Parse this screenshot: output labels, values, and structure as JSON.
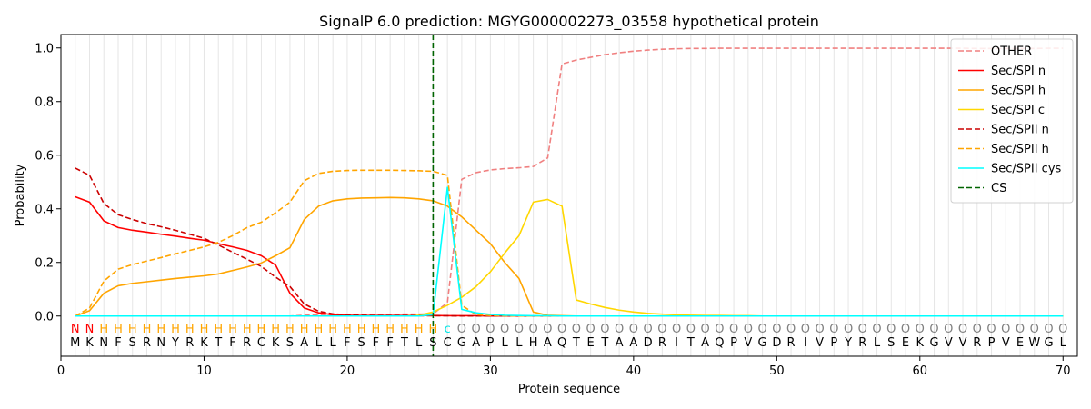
{
  "chart_data": {
    "type": "line",
    "title": "SignalP 6.0 prediction: MGYG000002273_03558 hypothetical protein",
    "xlabel": "Protein sequence",
    "ylabel": "Probability",
    "xlim": [
      0,
      71
    ],
    "ylim": [
      -0.15,
      1.05
    ],
    "xticks": [
      "0",
      "10",
      "20",
      "30",
      "40",
      "50",
      "60",
      "70"
    ],
    "yticks": [
      "0.0",
      "0.2",
      "0.4",
      "0.6",
      "0.8",
      "1.0"
    ],
    "grid": "vertical",
    "legend_position": "top-right",
    "sequence": [
      "M",
      "K",
      "N",
      "F",
      "S",
      "R",
      "N",
      "Y",
      "R",
      "K",
      "T",
      "F",
      "R",
      "C",
      "K",
      "S",
      "A",
      "L",
      "L",
      "F",
      "S",
      "F",
      "F",
      "T",
      "L",
      "S",
      "C",
      "G",
      "A",
      "P",
      "L",
      "L",
      "H",
      "A",
      "Q",
      "T",
      "E",
      "T",
      "A",
      "A",
      "D",
      "R",
      "I",
      "T",
      "A",
      "Q",
      "P",
      "V",
      "G",
      "D",
      "R",
      "I",
      "V",
      "P",
      "Y",
      "R",
      "L",
      "S",
      "E",
      "K",
      "G",
      "V",
      "V",
      "R",
      "P",
      "V",
      "E",
      "W",
      "G",
      "L"
    ],
    "labels": [
      "N",
      "N",
      "H",
      "H",
      "H",
      "H",
      "H",
      "H",
      "H",
      "H",
      "H",
      "H",
      "H",
      "H",
      "H",
      "H",
      "H",
      "H",
      "H",
      "H",
      "H",
      "H",
      "H",
      "H",
      "H",
      "H",
      "c",
      "O",
      "O",
      "O",
      "O",
      "O",
      "O",
      "O",
      "O",
      "O",
      "O",
      "O",
      "O",
      "O",
      "O",
      "O",
      "O",
      "O",
      "O",
      "O",
      "O",
      "O",
      "O",
      "O",
      "O",
      "O",
      "O",
      "O",
      "O",
      "O",
      "O",
      "O",
      "O",
      "O",
      "O",
      "O",
      "O",
      "O",
      "O",
      "O",
      "O",
      "O",
      "O",
      "O"
    ],
    "label_colors": {
      "N": "#ff0000",
      "H": "#ffa500",
      "c": "#00e5e5",
      "O": "#808080"
    },
    "cleavage_site": 26,
    "cs_color": "#006400",
    "series": [
      {
        "name": "OTHER",
        "color": "#f08080",
        "dash": "dashed",
        "values": [
          0.0,
          0.0,
          0.0,
          0.0,
          0.0,
          0.0,
          0.0,
          0.0,
          0.0,
          0.0,
          0.0,
          0.0,
          0.0,
          0.0,
          0.0,
          0.0,
          0.003,
          0.005,
          0.005,
          0.005,
          0.006,
          0.006,
          0.006,
          0.007,
          0.007,
          0.008,
          0.05,
          0.51,
          0.535,
          0.545,
          0.55,
          0.553,
          0.558,
          0.59,
          0.94,
          0.955,
          0.965,
          0.975,
          0.982,
          0.988,
          0.992,
          0.995,
          0.997,
          0.998,
          0.998,
          0.999,
          0.999,
          0.999,
          0.999,
          0.999,
          0.999,
          0.999,
          0.999,
          0.999,
          0.999,
          0.999,
          0.999,
          0.999,
          0.999,
          0.999,
          0.999,
          0.999,
          0.999,
          0.998,
          0.998,
          0.998,
          0.998,
          0.998,
          0.999,
          0.999
        ]
      },
      {
        "name": "Sec/SPI n",
        "color": "#ff0000",
        "dash": "solid",
        "values": [
          0.445,
          0.425,
          0.355,
          0.33,
          0.32,
          0.313,
          0.305,
          0.298,
          0.29,
          0.283,
          0.27,
          0.258,
          0.245,
          0.225,
          0.19,
          0.085,
          0.03,
          0.012,
          0.005,
          0.003,
          0.002,
          0.002,
          0.002,
          0.002,
          0.002,
          0.002,
          0.001,
          0.001,
          0.001,
          0.0,
          0.0,
          0.0,
          0.0,
          0.0,
          0.0,
          0.0,
          0.0,
          0.0,
          0.0,
          0.0,
          0.0,
          0.0,
          0.0,
          0.0,
          0.0,
          0.0,
          0.0,
          0.0,
          0.0,
          0.0,
          0.0,
          0.0,
          0.0,
          0.0,
          0.0,
          0.0,
          0.0,
          0.0,
          0.0,
          0.0,
          0.0,
          0.0,
          0.0,
          0.0,
          0.0,
          0.0,
          0.0,
          0.0,
          0.0,
          0.0
        ]
      },
      {
        "name": "Sec/SPI h",
        "color": "#ffa500",
        "dash": "solid",
        "values": [
          0.0,
          0.02,
          0.085,
          0.113,
          0.122,
          0.128,
          0.134,
          0.14,
          0.145,
          0.15,
          0.157,
          0.17,
          0.183,
          0.198,
          0.225,
          0.255,
          0.36,
          0.41,
          0.43,
          0.437,
          0.44,
          0.441,
          0.442,
          0.441,
          0.437,
          0.43,
          0.41,
          0.37,
          0.32,
          0.27,
          0.2,
          0.14,
          0.015,
          0.003,
          0.001,
          0.0,
          0.0,
          0.0,
          0.0,
          0.0,
          0.0,
          0.0,
          0.0,
          0.0,
          0.0,
          0.0,
          0.0,
          0.0,
          0.0,
          0.0,
          0.0,
          0.0,
          0.0,
          0.0,
          0.0,
          0.0,
          0.0,
          0.0,
          0.0,
          0.0,
          0.0,
          0.0,
          0.0,
          0.0,
          0.0,
          0.0,
          0.0,
          0.0,
          0.0,
          0.0
        ]
      },
      {
        "name": "Sec/SPI c",
        "color": "#ffd700",
        "dash": "solid",
        "values": [
          0.0,
          0.0,
          0.0,
          0.0,
          0.0,
          0.0,
          0.0,
          0.0,
          0.0,
          0.0,
          0.0,
          0.0,
          0.0,
          0.0,
          0.0,
          0.0,
          0.0,
          0.0,
          0.0,
          0.0,
          0.0,
          0.0,
          0.0,
          0.0,
          0.003,
          0.015,
          0.04,
          0.07,
          0.11,
          0.165,
          0.235,
          0.3,
          0.425,
          0.435,
          0.41,
          0.06,
          0.045,
          0.032,
          0.022,
          0.015,
          0.01,
          0.007,
          0.005,
          0.003,
          0.002,
          0.002,
          0.001,
          0.001,
          0.0,
          0.0,
          0.0,
          0.0,
          0.0,
          0.0,
          0.0,
          0.0,
          0.0,
          0.0,
          0.0,
          0.0,
          0.0,
          0.0,
          0.0,
          0.0,
          0.0,
          0.0,
          0.0,
          0.0,
          0.0,
          0.0
        ]
      },
      {
        "name": "Sec/SPII n",
        "color": "#cc0000",
        "dash": "dashed",
        "values": [
          0.552,
          0.525,
          0.42,
          0.378,
          0.36,
          0.345,
          0.333,
          0.32,
          0.305,
          0.29,
          0.265,
          0.238,
          0.212,
          0.185,
          0.145,
          0.11,
          0.045,
          0.018,
          0.008,
          0.005,
          0.003,
          0.002,
          0.002,
          0.002,
          0.001,
          0.001,
          0.001,
          0.0,
          0.0,
          0.0,
          0.0,
          0.0,
          0.0,
          0.0,
          0.0,
          0.0,
          0.0,
          0.0,
          0.0,
          0.0,
          0.0,
          0.0,
          0.0,
          0.0,
          0.0,
          0.0,
          0.0,
          0.0,
          0.0,
          0.0,
          0.0,
          0.0,
          0.0,
          0.0,
          0.0,
          0.0,
          0.0,
          0.0,
          0.0,
          0.0,
          0.0,
          0.0,
          0.0,
          0.0,
          0.0,
          0.0,
          0.0,
          0.0,
          0.0,
          0.0
        ]
      },
      {
        "name": "Sec/SPII h",
        "color": "#ffa500",
        "dash": "dashed",
        "values": [
          0.0,
          0.03,
          0.13,
          0.175,
          0.192,
          0.205,
          0.218,
          0.232,
          0.245,
          0.258,
          0.275,
          0.3,
          0.33,
          0.35,
          0.385,
          0.425,
          0.505,
          0.532,
          0.54,
          0.543,
          0.544,
          0.544,
          0.544,
          0.543,
          0.542,
          0.54,
          0.525,
          0.04,
          0.005,
          0.002,
          0.001,
          0.0,
          0.0,
          0.0,
          0.0,
          0.0,
          0.0,
          0.0,
          0.0,
          0.0,
          0.0,
          0.0,
          0.0,
          0.0,
          0.0,
          0.0,
          0.0,
          0.0,
          0.0,
          0.0,
          0.0,
          0.0,
          0.0,
          0.0,
          0.0,
          0.0,
          0.0,
          0.0,
          0.0,
          0.0,
          0.0,
          0.0,
          0.0,
          0.0,
          0.0,
          0.0,
          0.0,
          0.0,
          0.0,
          0.0
        ]
      },
      {
        "name": "Sec/SPII cys",
        "color": "#00ffff",
        "dash": "solid",
        "values": [
          0.0,
          0.0,
          0.0,
          0.0,
          0.0,
          0.0,
          0.0,
          0.0,
          0.0,
          0.0,
          0.0,
          0.0,
          0.0,
          0.0,
          0.0,
          0.0,
          0.0,
          0.0,
          0.0,
          0.0,
          0.0,
          0.0,
          0.0,
          0.0,
          0.0,
          0.005,
          0.48,
          0.025,
          0.012,
          0.006,
          0.003,
          0.002,
          0.001,
          0.001,
          0.0,
          0.0,
          0.0,
          0.0,
          0.0,
          0.0,
          0.0,
          0.0,
          0.0,
          0.0,
          0.0,
          0.0,
          0.0,
          0.0,
          0.0,
          0.0,
          0.0,
          0.0,
          0.0,
          0.0,
          0.0,
          0.0,
          0.0,
          0.0,
          0.0,
          0.0,
          0.0,
          0.0,
          0.0,
          0.0,
          0.0,
          0.0,
          0.0,
          0.0,
          0.0,
          0.0
        ]
      }
    ],
    "cs_legend": "CS"
  }
}
